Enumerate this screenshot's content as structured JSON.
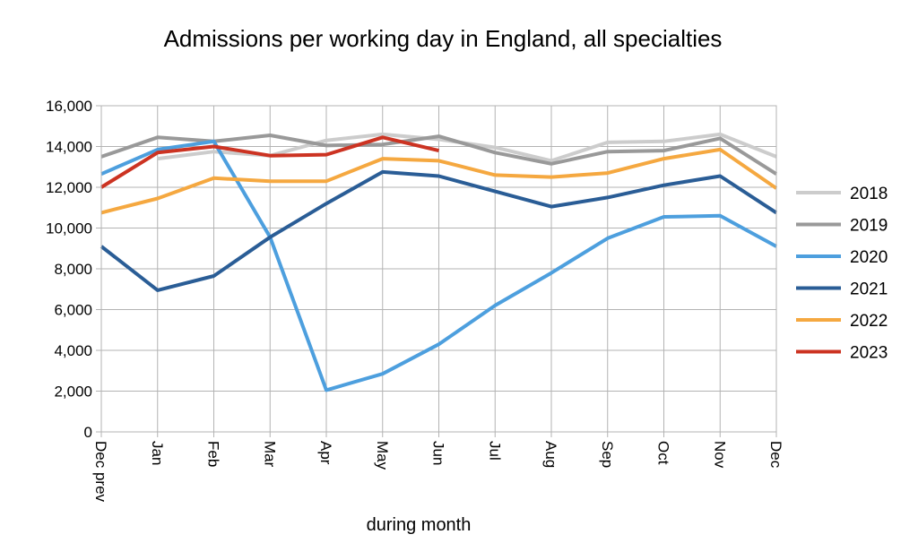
{
  "chart_data": {
    "type": "line",
    "title": "Admissions per working day in England, all specialties",
    "xlabel": "during  month",
    "ylabel": "",
    "categories": [
      "Dec prev",
      "Jan",
      "Feb",
      "Mar",
      "Apr",
      "May",
      "Jun",
      "Jul",
      "Aug",
      "Sep",
      "Oct",
      "Nov",
      "Dec"
    ],
    "y_ticks": [
      "0",
      "2,000",
      "4,000",
      "6,000",
      "8,000",
      "10,000",
      "12,000",
      "14,000",
      "16,000"
    ],
    "ylim": [
      0,
      16000
    ],
    "grid": true,
    "legend_position": "right",
    "series": [
      {
        "name": "2018",
        "color": "#cccccc",
        "values": [
          null,
          13400,
          13750,
          13550,
          14300,
          14600,
          14350,
          13950,
          13300,
          14200,
          14250,
          14600,
          13500
        ]
      },
      {
        "name": "2019",
        "color": "#999999",
        "values": [
          13500,
          14450,
          14250,
          14550,
          14050,
          14100,
          14500,
          13700,
          13150,
          13750,
          13800,
          14400,
          12650
        ]
      },
      {
        "name": "2020",
        "color": "#4d9fde",
        "values": [
          12650,
          13850,
          14250,
          9550,
          2050,
          2850,
          4300,
          6200,
          7800,
          9500,
          10550,
          10600,
          9100
        ]
      },
      {
        "name": "2021",
        "color": "#2a5d96",
        "values": [
          9100,
          6950,
          7650,
          9550,
          11200,
          12750,
          12550,
          11800,
          11050,
          11500,
          12100,
          12550,
          10750
        ]
      },
      {
        "name": "2022",
        "color": "#f5a840",
        "values": [
          10750,
          11450,
          12450,
          12300,
          12300,
          13400,
          13300,
          12600,
          12500,
          12700,
          13400,
          13850,
          11950
        ]
      },
      {
        "name": "2023",
        "color": "#cc3322",
        "values": [
          12000,
          13700,
          14000,
          13550,
          13600,
          14450,
          13800,
          null,
          null,
          null,
          null,
          null,
          null
        ]
      }
    ]
  }
}
